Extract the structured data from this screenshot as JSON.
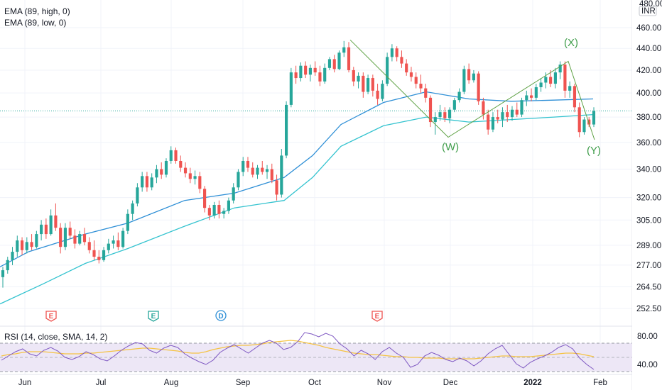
{
  "legend": {
    "ema_high": "EMA (89, high, 0)",
    "ema_low": "EMA (89, low, 0)",
    "rsi": "RSI (14, close, SMA, 14, 2)"
  },
  "price_axis": {
    "currency": "INR",
    "top_label": "480.00",
    "ticks": [
      460,
      440,
      420,
      400,
      380,
      360,
      340,
      320,
      305,
      289,
      277,
      264.5,
      252.5
    ]
  },
  "rsi_axis": {
    "ticks": [
      80,
      40
    ]
  },
  "colors": {
    "up": "#26a69a",
    "down": "#ef5350",
    "ema_high": "#2e8fd6",
    "ema_low": "#33c3cf",
    "rsi_line": "#7e57c2",
    "rsi_ma": "#f5c343",
    "rsi_band": "#ede7f6",
    "wave": "#5ea144",
    "wave_label": "#3f9d4a",
    "last_price_line": "#26a69a"
  },
  "chart_data": {
    "type": "candlestick",
    "price_scale": "log",
    "y_range": [
      245,
      482
    ],
    "x_months": [
      "Jun",
      "Jul",
      "Aug",
      "Sep",
      "Oct",
      "Nov",
      "Dec",
      "2022",
      "Feb"
    ],
    "last_price": 385,
    "candles": [
      [
        270,
        276,
        264,
        274
      ],
      [
        274,
        282,
        272,
        280
      ],
      [
        280,
        288,
        277,
        285
      ],
      [
        285,
        295,
        282,
        292
      ],
      [
        292,
        294,
        283,
        286
      ],
      [
        286,
        294,
        284,
        291
      ],
      [
        291,
        296,
        286,
        288
      ],
      [
        288,
        298,
        287,
        296
      ],
      [
        296,
        305,
        292,
        302
      ],
      [
        302,
        306,
        293,
        296
      ],
      [
        296,
        312,
        295,
        308
      ],
      [
        308,
        316,
        298,
        300
      ],
      [
        300,
        303,
        284,
        288
      ],
      [
        288,
        303,
        286,
        300
      ],
      [
        300,
        304,
        293,
        295
      ],
      [
        295,
        299,
        287,
        290
      ],
      [
        290,
        298,
        289,
        296
      ],
      [
        296,
        300,
        289,
        291
      ],
      [
        291,
        294,
        284,
        286
      ],
      [
        286,
        292,
        280,
        282
      ],
      [
        282,
        286,
        278,
        280
      ],
      [
        280,
        288,
        279,
        286
      ],
      [
        286,
        293,
        284,
        290
      ],
      [
        290,
        295,
        287,
        292
      ],
      [
        292,
        297,
        286,
        288
      ],
      [
        288,
        300,
        287,
        298
      ],
      [
        298,
        312,
        296,
        309
      ],
      [
        309,
        318,
        305,
        316
      ],
      [
        316,
        330,
        314,
        327
      ],
      [
        327,
        338,
        324,
        335
      ],
      [
        335,
        338,
        324,
        327
      ],
      [
        327,
        337,
        325,
        334
      ],
      [
        334,
        343,
        330,
        340
      ],
      [
        340,
        345,
        333,
        336
      ],
      [
        336,
        348,
        334,
        346
      ],
      [
        346,
        357,
        344,
        354
      ],
      [
        354,
        356,
        344,
        346
      ],
      [
        346,
        350,
        338,
        341
      ],
      [
        341,
        345,
        334,
        337
      ],
      [
        337,
        341,
        330,
        333
      ],
      [
        333,
        339,
        329,
        335
      ],
      [
        335,
        338,
        323,
        326
      ],
      [
        326,
        328,
        310,
        313
      ],
      [
        313,
        315,
        305,
        308
      ],
      [
        308,
        317,
        306,
        315
      ],
      [
        315,
        318,
        306,
        309
      ],
      [
        309,
        313,
        306,
        311
      ],
      [
        311,
        320,
        309,
        318
      ],
      [
        318,
        330,
        316,
        327
      ],
      [
        327,
        340,
        325,
        338
      ],
      [
        338,
        349,
        335,
        346
      ],
      [
        346,
        349,
        338,
        341
      ],
      [
        341,
        345,
        334,
        336
      ],
      [
        336,
        343,
        333,
        341
      ],
      [
        341,
        346,
        336,
        338
      ],
      [
        338,
        343,
        333,
        340
      ],
      [
        340,
        344,
        330,
        332
      ],
      [
        332,
        336,
        318,
        322
      ],
      [
        322,
        355,
        320,
        350
      ],
      [
        350,
        393,
        348,
        390
      ],
      [
        390,
        422,
        388,
        418
      ],
      [
        418,
        424,
        408,
        413
      ],
      [
        413,
        427,
        410,
        424
      ],
      [
        424,
        428,
        413,
        416
      ],
      [
        416,
        425,
        410,
        422
      ],
      [
        422,
        428,
        415,
        418
      ],
      [
        418,
        424,
        406,
        410
      ],
      [
        410,
        426,
        408,
        422
      ],
      [
        422,
        432,
        420,
        430
      ],
      [
        430,
        434,
        418,
        421
      ],
      [
        421,
        438,
        420,
        436
      ],
      [
        436,
        447,
        432,
        441
      ],
      [
        441,
        446,
        418,
        420
      ],
      [
        420,
        423,
        406,
        410
      ],
      [
        410,
        418,
        404,
        415
      ],
      [
        415,
        418,
        396,
        401
      ],
      [
        401,
        416,
        399,
        413
      ],
      [
        413,
        416,
        397,
        402
      ],
      [
        402,
        408,
        390,
        395
      ],
      [
        395,
        411,
        393,
        408
      ],
      [
        408,
        436,
        406,
        432
      ],
      [
        432,
        444,
        428,
        440
      ],
      [
        440,
        442,
        428,
        432
      ],
      [
        432,
        438,
        422,
        426
      ],
      [
        426,
        430,
        415,
        418
      ],
      [
        418,
        423,
        410,
        414
      ],
      [
        414,
        418,
        404,
        408
      ],
      [
        408,
        416,
        400,
        404
      ],
      [
        404,
        408,
        392,
        396
      ],
      [
        396,
        398,
        372,
        376
      ],
      [
        376,
        384,
        366,
        380
      ],
      [
        380,
        390,
        377,
        384
      ],
      [
        384,
        388,
        376,
        379
      ],
      [
        379,
        388,
        375,
        386
      ],
      [
        386,
        396,
        384,
        394
      ],
      [
        394,
        404,
        392,
        401
      ],
      [
        401,
        424,
        399,
        421
      ],
      [
        421,
        426,
        408,
        411
      ],
      [
        411,
        420,
        409,
        417
      ],
      [
        417,
        419,
        390,
        393
      ],
      [
        393,
        396,
        378,
        382
      ],
      [
        382,
        386,
        366,
        370
      ],
      [
        370,
        384,
        368,
        380
      ],
      [
        380,
        386,
        375,
        378
      ],
      [
        378,
        388,
        372,
        384
      ],
      [
        384,
        390,
        376,
        380
      ],
      [
        380,
        389,
        377,
        386
      ],
      [
        386,
        392,
        380,
        382
      ],
      [
        382,
        396,
        380,
        394
      ],
      [
        394,
        402,
        389,
        398
      ],
      [
        398,
        404,
        393,
        396
      ],
      [
        396,
        408,
        394,
        405
      ],
      [
        405,
        413,
        401,
        409
      ],
      [
        409,
        418,
        404,
        414
      ],
      [
        414,
        420,
        405,
        408
      ],
      [
        408,
        422,
        404,
        418
      ],
      [
        418,
        428,
        412,
        425
      ],
      [
        425,
        428,
        396,
        402
      ],
      [
        402,
        410,
        396,
        406
      ],
      [
        406,
        408,
        384,
        388
      ],
      [
        388,
        392,
        364,
        368
      ],
      [
        368,
        380,
        366,
        378
      ],
      [
        378,
        380,
        372,
        374
      ],
      [
        374,
        388,
        372,
        385
      ]
    ],
    "ema_high": [
      [
        0,
        276
      ],
      [
        40,
        285
      ],
      [
        120,
        296
      ],
      [
        180,
        303
      ],
      [
        260,
        318
      ],
      [
        330,
        323
      ],
      [
        400,
        334
      ],
      [
        440,
        350
      ],
      [
        480,
        374
      ],
      [
        540,
        392
      ],
      [
        600,
        401
      ],
      [
        660,
        395
      ],
      [
        720,
        393
      ],
      [
        780,
        394
      ],
      [
        835,
        395
      ]
    ],
    "ema_low": [
      [
        0,
        255
      ],
      [
        60,
        266
      ],
      [
        120,
        278
      ],
      [
        180,
        287
      ],
      [
        260,
        301
      ],
      [
        330,
        313
      ],
      [
        400,
        318
      ],
      [
        440,
        334
      ],
      [
        480,
        357
      ],
      [
        540,
        373
      ],
      [
        600,
        380
      ],
      [
        660,
        376
      ],
      [
        720,
        378
      ],
      [
        780,
        380
      ],
      [
        835,
        382
      ]
    ],
    "wave_line": [
      [
        493,
        448
      ],
      [
        631,
        364
      ],
      [
        800,
        428
      ],
      [
        837,
        362
      ]
    ],
    "wave_labels": {
      "W": "(W)",
      "X": "(X)",
      "Y": "(Y)"
    },
    "events": [
      "E",
      "E",
      "D",
      "E"
    ],
    "rsi": {
      "values": [
        46,
        52,
        58,
        62,
        55,
        52,
        60,
        64,
        59,
        50,
        47,
        51,
        58,
        54,
        48,
        45,
        52,
        60,
        66,
        71,
        69,
        60,
        56,
        63,
        67,
        64,
        55,
        49,
        44,
        40,
        46,
        57,
        63,
        68,
        62,
        56,
        63,
        70,
        74,
        70,
        61,
        64,
        72,
        85,
        83,
        79,
        84,
        80,
        69,
        62,
        52,
        60,
        55,
        47,
        58,
        64,
        56,
        50,
        36,
        40,
        52,
        57,
        53,
        47,
        44,
        49,
        45,
        38,
        45,
        55,
        62,
        67,
        54,
        41,
        35,
        43,
        48,
        52,
        57,
        64,
        68,
        62,
        49,
        40,
        33
      ],
      "ma_values": [
        52,
        54,
        55,
        57,
        58,
        58,
        58,
        57,
        56,
        55,
        55,
        55,
        56,
        56,
        57,
        58,
        59,
        60,
        61,
        62,
        63,
        63,
        62,
        61,
        60,
        59,
        57,
        56,
        56,
        58,
        61,
        63,
        65,
        66,
        67,
        67,
        68,
        69,
        71,
        72,
        73,
        74,
        73,
        71,
        69,
        67,
        64,
        62,
        60,
        58,
        56,
        55,
        54,
        54,
        53,
        52,
        51,
        51,
        50,
        50,
        49,
        49,
        49,
        48,
        48,
        48,
        48,
        48,
        49,
        50,
        51,
        52,
        52,
        51,
        51,
        51,
        52,
        53,
        54,
        55,
        56,
        56,
        55,
        53,
        51
      ],
      "y_range": [
        28,
        92
      ],
      "upper_band": 70,
      "lower_band": 30
    }
  }
}
